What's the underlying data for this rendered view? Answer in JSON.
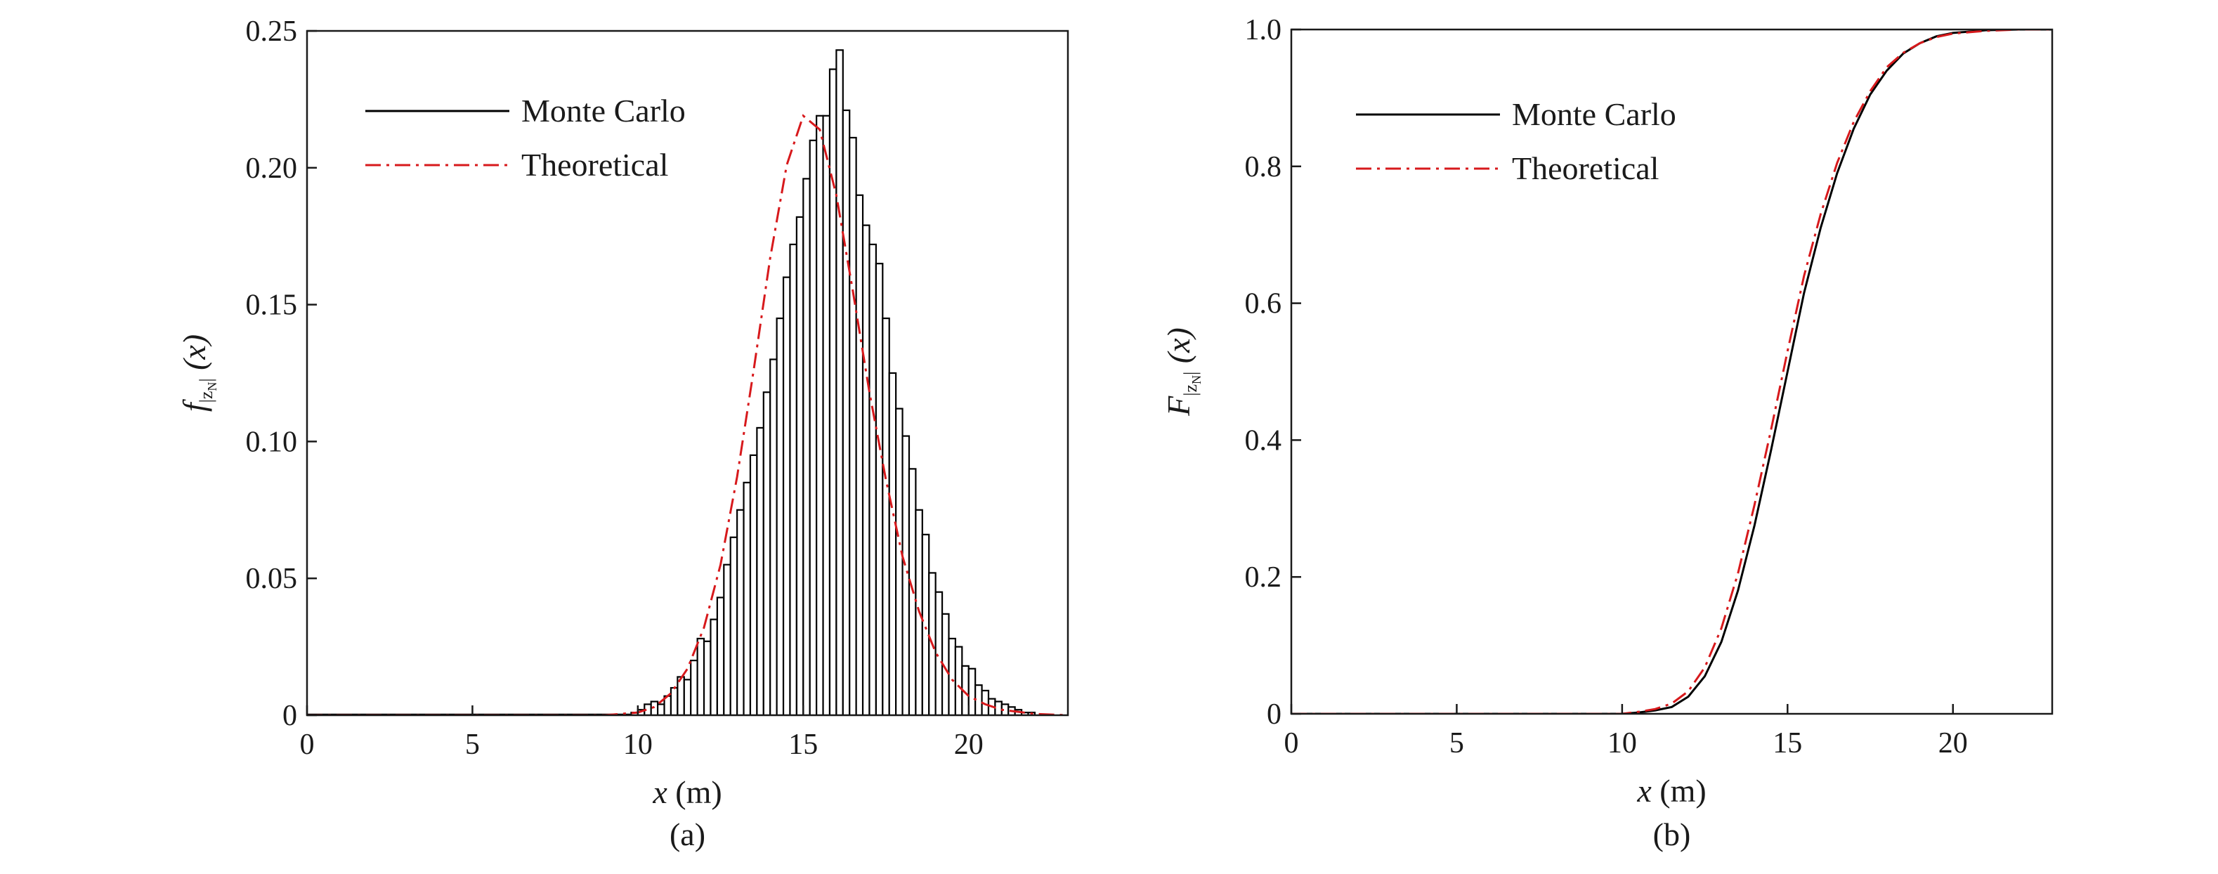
{
  "colors": {
    "histogram": "#000000",
    "theoretical": "#d7191c",
    "cdf_mc": "#000000"
  },
  "chart_data": [
    {
      "type": "bar",
      "caption": "(a)",
      "xlabel_var": "x",
      "xlabel_unit": "(m)",
      "ylabel_main": "f",
      "ylabel_sub": "|z",
      "ylabel_subsub": "N",
      "ylabel_subclose": "|",
      "ylabel_arg": "(x)",
      "xlim": [
        0,
        23
      ],
      "ylim": [
        0,
        0.25
      ],
      "xticks": [
        {
          "value": 0,
          "label": "0"
        },
        {
          "value": 5,
          "label": "5"
        },
        {
          "value": 10,
          "label": "10"
        },
        {
          "value": 15,
          "label": "15"
        },
        {
          "value": 20,
          "label": "20"
        }
      ],
      "yticks": [
        {
          "value": 0,
          "label": "0"
        },
        {
          "value": 0.05,
          "label": "0.05"
        },
        {
          "value": 0.1,
          "label": "0.10"
        },
        {
          "value": 0.15,
          "label": "0.15"
        },
        {
          "value": 0.2,
          "label": "0.20"
        },
        {
          "value": 0.25,
          "label": "0.25"
        }
      ],
      "legend": [
        {
          "name": "Monte Carlo",
          "style": "solid"
        },
        {
          "name": "Theoretical",
          "style": "dashdot"
        }
      ],
      "legend_position": "top-left",
      "grid": false,
      "histogram": {
        "name": "Monte Carlo",
        "bin_width": 0.2,
        "bin_start": 9.8,
        "values": [
          0.001,
          0.002,
          0.004,
          0.005,
          0.004,
          0.007,
          0.01,
          0.014,
          0.013,
          0.02,
          0.028,
          0.027,
          0.035,
          0.043,
          0.055,
          0.065,
          0.075,
          0.085,
          0.095,
          0.105,
          0.118,
          0.13,
          0.145,
          0.16,
          0.172,
          0.182,
          0.196,
          0.21,
          0.219,
          0.219,
          0.236,
          0.243,
          0.221,
          0.211,
          0.19,
          0.179,
          0.172,
          0.165,
          0.145,
          0.125,
          0.112,
          0.102,
          0.09,
          0.075,
          0.066,
          0.052,
          0.045,
          0.037,
          0.028,
          0.025,
          0.018,
          0.017,
          0.011,
          0.009,
          0.006,
          0.005,
          0.004,
          0.003,
          0.002,
          0.001,
          0.001
        ]
      },
      "theoretical": {
        "name": "Theoretical",
        "x": [
          0,
          9,
          10,
          10.5,
          11,
          11.5,
          12,
          12.5,
          13,
          13.5,
          14,
          14.5,
          15,
          15.5,
          16,
          16.5,
          17,
          17.5,
          18,
          18.5,
          19,
          19.5,
          20,
          20.5,
          21,
          22,
          23
        ],
        "y": [
          0,
          0,
          0.001,
          0.003,
          0.008,
          0.017,
          0.032,
          0.055,
          0.087,
          0.126,
          0.167,
          0.201,
          0.219,
          0.214,
          0.19,
          0.155,
          0.118,
          0.086,
          0.058,
          0.038,
          0.023,
          0.013,
          0.007,
          0.004,
          0.002,
          0.0005,
          0
        ]
      }
    },
    {
      "type": "line",
      "caption": "(b)",
      "xlabel_var": "x",
      "xlabel_unit": "(m)",
      "ylabel_main": "F",
      "ylabel_sub": "|z",
      "ylabel_subsub": "N",
      "ylabel_subclose": "|",
      "ylabel_arg": "(x)",
      "xlim": [
        0,
        23
      ],
      "ylim": [
        0,
        1.0
      ],
      "xticks": [
        {
          "value": 0,
          "label": "0"
        },
        {
          "value": 5,
          "label": "5"
        },
        {
          "value": 10,
          "label": "10"
        },
        {
          "value": 15,
          "label": "15"
        },
        {
          "value": 20,
          "label": "20"
        }
      ],
      "yticks": [
        {
          "value": 0,
          "label": "0"
        },
        {
          "value": 0.2,
          "label": "0.2"
        },
        {
          "value": 0.4,
          "label": "0.4"
        },
        {
          "value": 0.6,
          "label": "0.6"
        },
        {
          "value": 0.8,
          "label": "0.8"
        },
        {
          "value": 1.0,
          "label": "1.0"
        }
      ],
      "legend": [
        {
          "name": "Monte Carlo",
          "style": "solid"
        },
        {
          "name": "Theoretical",
          "style": "dashdot"
        }
      ],
      "legend_position": "top-left",
      "grid": false,
      "series": [
        {
          "name": "Monte Carlo",
          "style": "solid",
          "x": [
            0,
            10,
            10.5,
            11,
            11.5,
            12,
            12.5,
            13,
            13.5,
            14,
            14.5,
            15,
            15.5,
            16,
            16.5,
            17,
            17.5,
            18,
            18.5,
            19,
            19.5,
            20,
            21,
            22,
            23
          ],
          "y": [
            0,
            0,
            0.002,
            0.005,
            0.01,
            0.025,
            0.055,
            0.105,
            0.18,
            0.275,
            0.385,
            0.5,
            0.615,
            0.71,
            0.79,
            0.855,
            0.905,
            0.94,
            0.965,
            0.98,
            0.99,
            0.995,
            0.999,
            1.0,
            1.0
          ]
        },
        {
          "name": "Theoretical",
          "style": "dashdot",
          "x": [
            0,
            10,
            10.5,
            11,
            11.5,
            12,
            12.5,
            13,
            13.5,
            14,
            14.5,
            15,
            15.5,
            16,
            16.5,
            17,
            17.5,
            18,
            18.5,
            19,
            19.5,
            20,
            21,
            22,
            23
          ],
          "y": [
            0,
            0,
            0.003,
            0.007,
            0.015,
            0.033,
            0.068,
            0.125,
            0.205,
            0.305,
            0.415,
            0.53,
            0.64,
            0.73,
            0.805,
            0.865,
            0.91,
            0.945,
            0.966,
            0.98,
            0.989,
            0.994,
            0.998,
            1.0,
            1.0
          ]
        }
      ]
    }
  ]
}
